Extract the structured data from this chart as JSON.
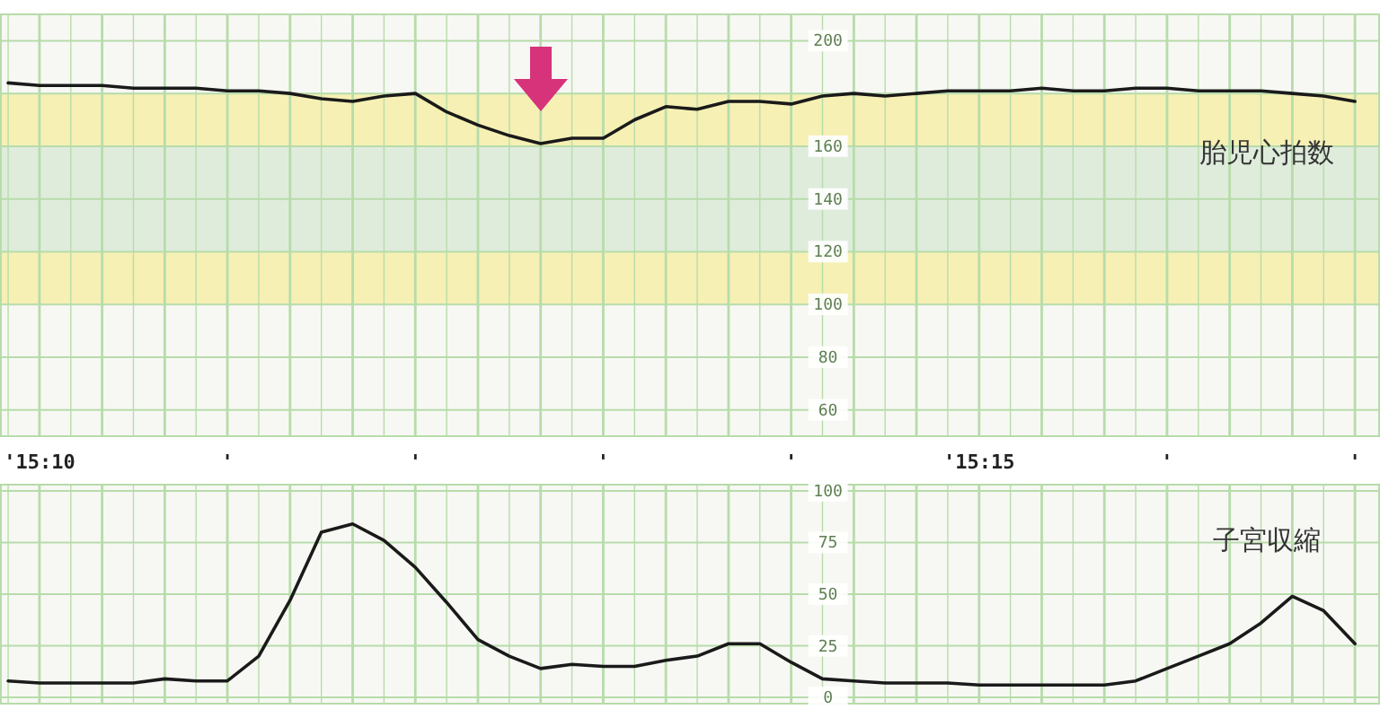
{
  "chart_data": [
    {
      "type": "line",
      "ylim": [
        50,
        210
      ],
      "categories": [
        null,
        "'15:10",
        null,
        null,
        null,
        null,
        null,
        "'",
        null,
        null,
        null,
        null,
        null,
        "'",
        null,
        null,
        null,
        null,
        null,
        "'",
        null,
        null,
        null,
        null,
        null,
        "'",
        null,
        null,
        null,
        null,
        null,
        "'15:15",
        null,
        null,
        null,
        null,
        null,
        "'",
        null,
        null,
        null,
        null,
        null,
        "'"
      ],
      "yticks": [
        200,
        {
          "value": 180,
          "label": null
        },
        160,
        140,
        120,
        100,
        80,
        60
      ],
      "grid": true,
      "bands": [
        {
          "axis": "y",
          "from": 160,
          "to": 180,
          "color": "#f6f0b4"
        },
        {
          "axis": "y",
          "from": 120,
          "to": 160,
          "color": "#dfecdc"
        },
        {
          "axis": "y",
          "from": 100,
          "to": 120,
          "color": "#f6f0b4"
        }
      ],
      "series": [
        {
          "name": "胎児心拍数",
          "color": "#1a1a1a",
          "values": [
            184,
            183,
            183,
            183,
            182,
            182,
            182,
            181,
            181,
            180,
            178,
            177,
            179,
            180,
            173,
            168,
            164,
            161,
            163,
            163,
            170,
            175,
            174,
            177,
            177,
            176,
            179,
            180,
            179,
            180,
            181,
            181,
            181,
            182,
            181,
            181,
            182,
            182,
            181,
            181,
            181,
            180,
            179,
            177
          ]
        }
      ]
    },
    {
      "type": "line",
      "ylim": [
        -3,
        103
      ],
      "categories": [
        null,
        null,
        null,
        null,
        null,
        null,
        null,
        null,
        null,
        null,
        null,
        null,
        null,
        null,
        null,
        null,
        null,
        null,
        null,
        null,
        null,
        null,
        null,
        null,
        null,
        null,
        null,
        null,
        null,
        null,
        null,
        null,
        null,
        null,
        null,
        null,
        null,
        null,
        null,
        null,
        null,
        null,
        null,
        null
      ],
      "yticks": [
        100,
        75,
        50,
        25,
        0
      ],
      "tick_labels": "y",
      "grid": true,
      "series": [
        {
          "name": "子宮収縮",
          "color": "#1a1a1a",
          "values": [
            8,
            7,
            7,
            7,
            7,
            9,
            8,
            8,
            20,
            47,
            80,
            84,
            76,
            63,
            46,
            28,
            20,
            14,
            16,
            15,
            15,
            18,
            20,
            26,
            26,
            17,
            9,
            8,
            7,
            7,
            7,
            6,
            6,
            6,
            6,
            6,
            8,
            14,
            20,
            26,
            36,
            49,
            42,
            26
          ]
        }
      ]
    }
  ]
}
